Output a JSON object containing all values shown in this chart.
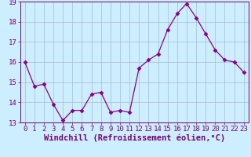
{
  "x": [
    0,
    1,
    2,
    3,
    4,
    5,
    6,
    7,
    8,
    9,
    10,
    11,
    12,
    13,
    14,
    15,
    16,
    17,
    18,
    19,
    20,
    21,
    22,
    23
  ],
  "y": [
    16.0,
    14.8,
    14.9,
    13.9,
    13.1,
    13.6,
    13.6,
    14.4,
    14.5,
    13.5,
    13.6,
    13.5,
    15.7,
    16.1,
    16.4,
    17.6,
    18.4,
    18.9,
    18.2,
    17.4,
    16.6,
    16.1,
    16.0,
    15.5
  ],
  "line_color": "#880088",
  "marker": "D",
  "marker_size": 2.5,
  "bg_color": "#cceeff",
  "grid_color": "#aabbcc",
  "xlabel": "Windchill (Refroidissement éolien,°C)",
  "ylim": [
    13,
    19
  ],
  "xlim": [
    -0.5,
    23.5
  ],
  "yticks": [
    13,
    14,
    15,
    16,
    17,
    18,
    19
  ],
  "xticks": [
    0,
    1,
    2,
    3,
    4,
    5,
    6,
    7,
    8,
    9,
    10,
    11,
    12,
    13,
    14,
    15,
    16,
    17,
    18,
    19,
    20,
    21,
    22,
    23
  ],
  "tick_label_fontsize": 6.5,
  "xlabel_fontsize": 7.5,
  "tick_color": "#770077",
  "spine_color": "#770077"
}
